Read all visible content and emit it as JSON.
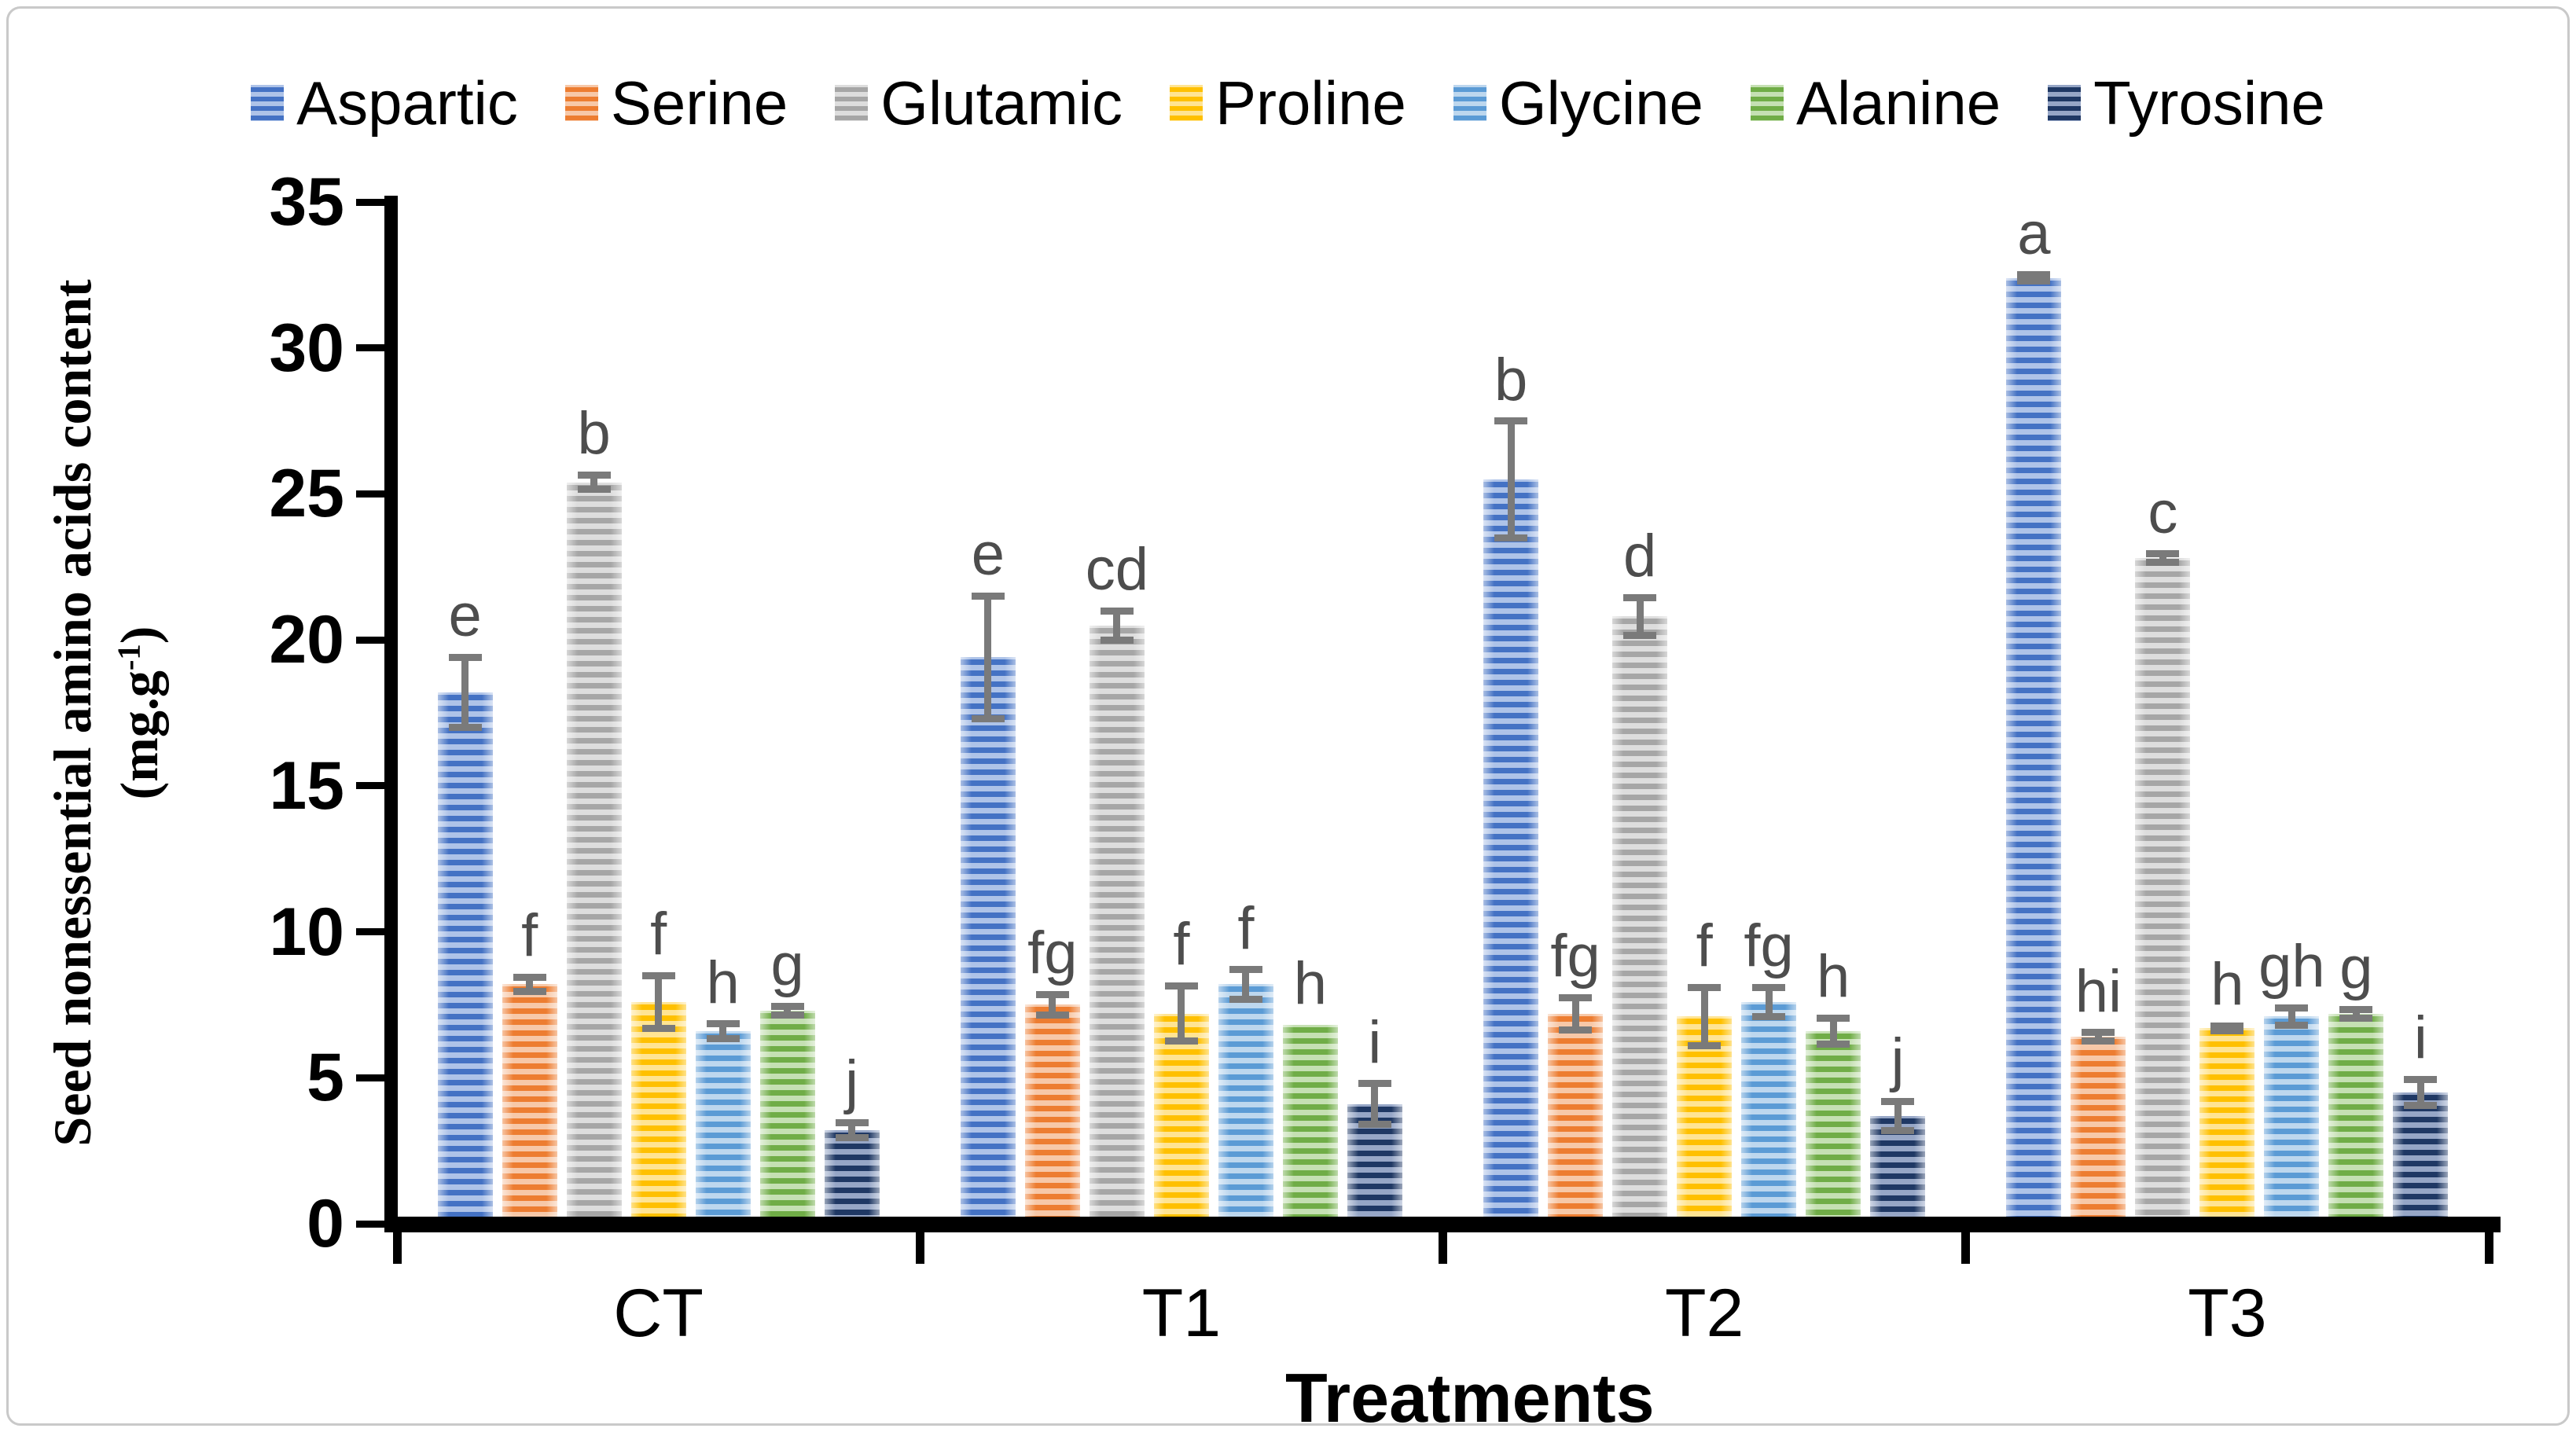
{
  "figure": {
    "background": "#ffffff",
    "border_color": "#c9c9c9"
  },
  "axes": {
    "y_title_line1": "Seed nonessential amino acids content",
    "y_unit_pre": "(mg.g",
    "y_unit_sup": "-1",
    "y_unit_post": ")",
    "x_title": "Treatments",
    "y_ticks": [
      0,
      5,
      10,
      15,
      20,
      25,
      30,
      35
    ],
    "axis_color": "#000000",
    "tick_label_color": "#000000"
  },
  "chart_data": {
    "type": "bar",
    "title": "",
    "xlabel": "Treatments",
    "ylabel": "Seed nonessential amino acids content (mg.g-1)",
    "ylim": [
      0,
      35
    ],
    "grid": false,
    "legend_position": "top",
    "error_bar_color": "#7a7a7a",
    "letter_color": "#4d4d4d",
    "categories": [
      "CT",
      "T1",
      "T2",
      "T3"
    ],
    "series": [
      {
        "name": "Aspartic",
        "stripe": "#4472C4",
        "tint": "#AEC3E8",
        "values": [
          18.2,
          19.4,
          25.5,
          32.4
        ],
        "errors": [
          1.2,
          2.1,
          2.0,
          0.1
        ],
        "letters": [
          "e",
          "e",
          "b",
          "a"
        ]
      },
      {
        "name": "Serine",
        "stripe": "#ED7D31",
        "tint": "#F7C8A8",
        "values": [
          8.2,
          7.5,
          7.2,
          6.4
        ],
        "errors": [
          0.25,
          0.35,
          0.55,
          0.15
        ],
        "letters": [
          "f",
          "fg",
          "fg",
          "hi"
        ]
      },
      {
        "name": "Glutamic",
        "stripe": "#A6A6A6",
        "tint": "#DDDDDD",
        "values": [
          25.4,
          20.5,
          20.8,
          22.8
        ],
        "errors": [
          0.25,
          0.5,
          0.65,
          0.15
        ],
        "letters": [
          "b",
          "cd",
          "d",
          "c"
        ]
      },
      {
        "name": "Proline",
        "stripe": "#FFC000",
        "tint": "#FFE493",
        "values": [
          7.6,
          7.2,
          7.1,
          6.7
        ],
        "errors": [
          0.9,
          0.95,
          1.0,
          0.08
        ],
        "letters": [
          "f",
          "f",
          "f",
          "h"
        ]
      },
      {
        "name": "Glycine",
        "stripe": "#5B9BD5",
        "tint": "#BDD7EE",
        "values": [
          6.6,
          8.2,
          7.6,
          7.1
        ],
        "errors": [
          0.25,
          0.5,
          0.5,
          0.3
        ],
        "letters": [
          "h",
          "f",
          "fg",
          "gh"
        ]
      },
      {
        "name": "Alanine",
        "stripe": "#70AD47",
        "tint": "#C5E0B3",
        "values": [
          7.3,
          6.8,
          6.6,
          7.2
        ],
        "errors": [
          0.15,
          0,
          0.45,
          0.15
        ],
        "letters": [
          "g",
          "h",
          "h",
          "g"
        ]
      },
      {
        "name": "Tyrosine",
        "stripe": "#1F3864",
        "tint": "#96A6C6",
        "values": [
          3.2,
          4.1,
          3.7,
          4.5
        ],
        "errors": [
          0.25,
          0.7,
          0.5,
          0.45
        ],
        "letters": [
          "j",
          "i",
          "j",
          "i"
        ]
      }
    ]
  }
}
